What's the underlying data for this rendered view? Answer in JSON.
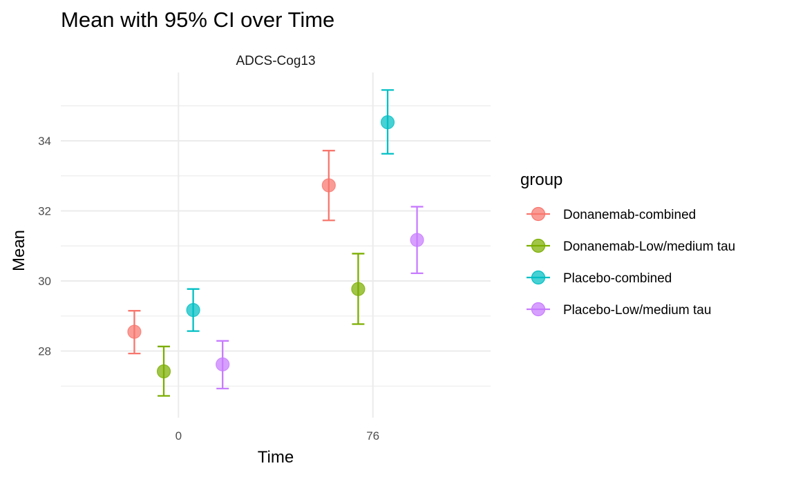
{
  "chart_data": {
    "type": "scatter",
    "title": "Mean with 95% CI over Time",
    "facet_label": "ADCS-Cog13",
    "xlabel": "Time",
    "ylabel": "Mean",
    "x_ticks": [
      0,
      76
    ],
    "y_ticks": [
      28,
      30,
      32,
      34
    ],
    "xlim": [
      -46,
      122
    ],
    "ylim": [
      26.1,
      35.95
    ],
    "grid": true,
    "dodge_width": 46,
    "legend": {
      "title": "group",
      "position": "right"
    },
    "series": [
      {
        "name": "Donanemab-combined",
        "color": "#F8766D",
        "points": [
          {
            "x": 0,
            "mean": 28.55,
            "lower": 27.93,
            "upper": 29.15
          },
          {
            "x": 76,
            "mean": 32.73,
            "lower": 31.73,
            "upper": 33.72
          }
        ]
      },
      {
        "name": "Donanemab-Low/medium tau",
        "color": "#7CAE00",
        "points": [
          {
            "x": 0,
            "mean": 27.42,
            "lower": 26.72,
            "upper": 28.13
          },
          {
            "x": 76,
            "mean": 29.77,
            "lower": 28.77,
            "upper": 30.78
          }
        ]
      },
      {
        "name": "Placebo-combined",
        "color": "#00BFC4",
        "points": [
          {
            "x": 0,
            "mean": 29.17,
            "lower": 28.57,
            "upper": 29.77
          },
          {
            "x": 76,
            "mean": 34.53,
            "lower": 33.63,
            "upper": 35.45
          }
        ]
      },
      {
        "name": "Placebo-Low/medium tau",
        "color": "#C77CFF",
        "points": [
          {
            "x": 0,
            "mean": 27.62,
            "lower": 26.93,
            "upper": 28.29
          },
          {
            "x": 76,
            "mean": 31.17,
            "lower": 30.22,
            "upper": 32.12
          }
        ]
      }
    ]
  }
}
